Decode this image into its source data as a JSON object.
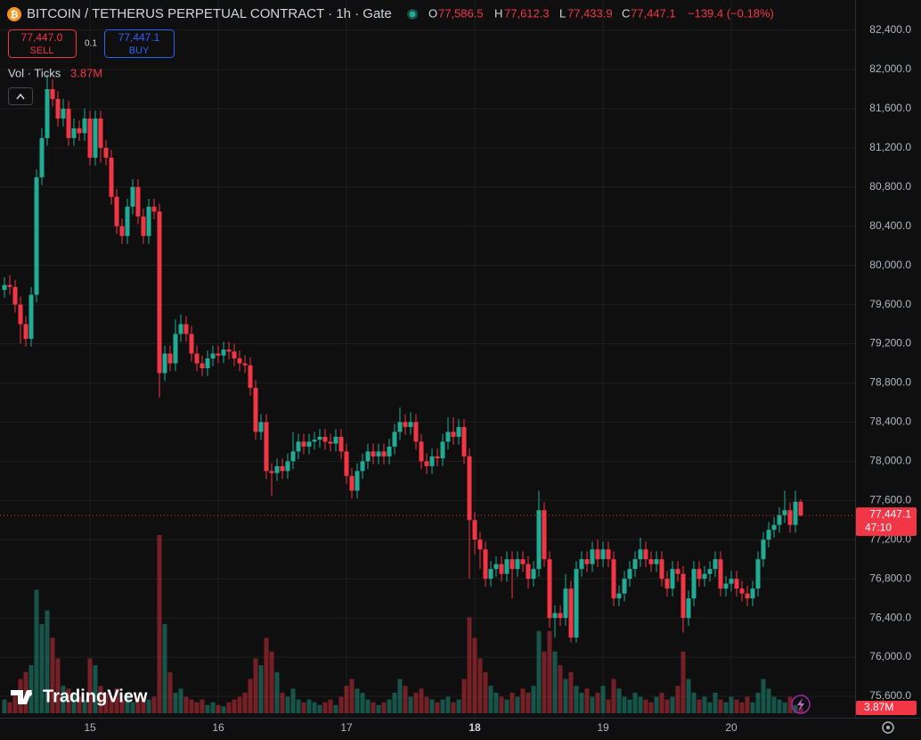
{
  "header": {
    "title": "BITCOIN / TETHERUS PERPETUAL CONTRACT · 1h · Gate",
    "o": "O",
    "h": "H",
    "l": "L",
    "c": "C"
  },
  "trade": {
    "sell_price": "77,447.0",
    "sell": "SELL",
    "size": "0.1",
    "buy_price": "77,447.1",
    "buy": "BUY"
  },
  "logo": "TradingView",
  "chart_data": {
    "type": "candlestick",
    "legend": {
      "open": "77,586.5",
      "high": "77,612.3",
      "low": "77,433.9",
      "close": "77,447.1",
      "change": "−139.4 (−0.18%)"
    },
    "countdown": "47:10",
    "volume_title": "Vol · Ticks",
    "volume_label": "3.87M",
    "up_color": "#22ab94",
    "down_color": "#f23645",
    "grid": true,
    "categories": [
      null,
      null,
      null,
      null,
      null,
      null,
      null,
      null,
      null,
      null,
      null,
      null,
      null,
      null,
      null,
      null,
      "15",
      null,
      null,
      null,
      null,
      null,
      null,
      null,
      null,
      null,
      null,
      null,
      null,
      null,
      null,
      null,
      null,
      null,
      null,
      null,
      null,
      null,
      null,
      null,
      "16",
      null,
      null,
      null,
      null,
      null,
      null,
      null,
      null,
      null,
      null,
      null,
      null,
      null,
      null,
      null,
      null,
      null,
      null,
      null,
      null,
      null,
      null,
      null,
      "17",
      null,
      null,
      null,
      null,
      null,
      null,
      null,
      null,
      null,
      null,
      null,
      null,
      null,
      null,
      null,
      null,
      null,
      null,
      null,
      null,
      null,
      null,
      null,
      "18",
      null,
      null,
      null,
      null,
      null,
      null,
      null,
      null,
      null,
      null,
      null,
      null,
      null,
      null,
      null,
      null,
      null,
      null,
      null,
      null,
      null,
      null,
      null,
      "19",
      null,
      null,
      null,
      null,
      null,
      null,
      null,
      null,
      null,
      null,
      null,
      null,
      null,
      null,
      null,
      null,
      null,
      null,
      null,
      null,
      null,
      null,
      null,
      "20",
      null,
      null,
      null,
      null,
      null,
      null,
      null,
      null,
      null,
      null,
      null,
      null,
      null
    ],
    "open": [
      79750,
      79800,
      79780,
      79600,
      79400,
      79250,
      79700,
      80900,
      81300,
      81800,
      81700,
      81500,
      81600,
      81300,
      81400,
      81350,
      81500,
      81100,
      81500,
      81200,
      81100,
      80700,
      80400,
      80300,
      80600,
      80800,
      80500,
      80300,
      80600,
      80550,
      78900,
      79100,
      79000,
      79300,
      79400,
      79300,
      79100,
      79000,
      78950,
      79050,
      79100,
      79080,
      79140,
      79120,
      79050,
      79000,
      78980,
      78750,
      78300,
      78400,
      77900,
      77880,
      77950,
      77900,
      78000,
      78100,
      78200,
      78150,
      78200,
      78220,
      78250,
      78200,
      78180,
      78250,
      78100,
      77850,
      77700,
      77900,
      78000,
      78100,
      78050,
      78100,
      78050,
      78150,
      78300,
      78400,
      78350,
      78400,
      78200,
      78000,
      77950,
      78050,
      78030,
      78200,
      78300,
      78250,
      78350,
      78050,
      77400,
      77200,
      77100,
      76800,
      76900,
      76950,
      76850,
      77000,
      76900,
      77000,
      76950,
      76800,
      76900,
      77500,
      77000,
      76400,
      76450,
      76400,
      76700,
      76200,
      76900,
      77000,
      76950,
      77100,
      77000,
      77100,
      77000,
      76600,
      76650,
      76800,
      76900,
      77000,
      77100,
      77000,
      76950,
      77000,
      76800,
      76700,
      76900,
      76850,
      76400,
      76600,
      76900,
      76800,
      76850,
      76900,
      77000,
      76700,
      76750,
      76800,
      76700,
      76650,
      76600,
      76700,
      77000,
      77200,
      77300,
      77350,
      77450,
      77500,
      77350,
      77586.5
    ],
    "high": [
      79880,
      79900,
      79850,
      79680,
      79480,
      79780,
      80980,
      81400,
      81950,
      81900,
      81780,
      81700,
      81680,
      81500,
      81480,
      81600,
      81580,
      81580,
      81580,
      81280,
      81180,
      80780,
      80480,
      80680,
      80880,
      80880,
      80580,
      80680,
      80680,
      80630,
      79180,
      79180,
      79450,
      79500,
      79480,
      79380,
      79180,
      79080,
      79130,
      79180,
      79180,
      79220,
      79220,
      79200,
      79130,
      79080,
      79060,
      78830,
      78480,
      78480,
      77980,
      78030,
      78030,
      78080,
      78300,
      78280,
      78280,
      78280,
      78300,
      78330,
      78330,
      78280,
      78330,
      78330,
      78180,
      77930,
      77980,
      78080,
      78180,
      78180,
      78180,
      78180,
      78230,
      78380,
      78550,
      78480,
      78500,
      78480,
      78280,
      78080,
      78130,
      78130,
      78280,
      78450,
      78450,
      78430,
      78430,
      78130,
      77480,
      77280,
      77180,
      76980,
      77030,
      77030,
      77080,
      77080,
      77080,
      77080,
      77030,
      76980,
      77700,
      77580,
      77080,
      76530,
      76530,
      76850,
      76780,
      76980,
      77080,
      77080,
      77180,
      77200,
      77180,
      77180,
      77080,
      76730,
      76880,
      76980,
      77080,
      77220,
      77180,
      77080,
      77080,
      77080,
      76880,
      76980,
      76980,
      76930,
      76680,
      76980,
      76980,
      76930,
      76980,
      77080,
      77080,
      76830,
      76880,
      76880,
      76780,
      76730,
      76780,
      77080,
      77280,
      77380,
      77430,
      77530,
      77700,
      77580,
      77700,
      77612.3
    ],
    "low": [
      79670,
      79700,
      79520,
      79200,
      79170,
      79170,
      79620,
      80820,
      81220,
      81620,
      81420,
      81420,
      81220,
      81220,
      81270,
      81270,
      81020,
      81020,
      81050,
      81020,
      80620,
      80320,
      80220,
      80220,
      80520,
      80420,
      80220,
      80220,
      80470,
      78650,
      78820,
      78920,
      78920,
      79220,
      79220,
      79020,
      78920,
      78870,
      78870,
      78970,
      79000,
      79000,
      79040,
      78970,
      78920,
      78900,
      78670,
      78220,
      78220,
      77820,
      77650,
      77800,
      77820,
      77820,
      77920,
      78020,
      78070,
      78070,
      78120,
      78140,
      78120,
      78100,
      78100,
      78020,
      77770,
      77620,
      77620,
      77820,
      77920,
      77970,
      77970,
      77970,
      77970,
      78070,
      78220,
      78270,
      78270,
      78120,
      77920,
      77870,
      77870,
      77950,
      77950,
      78120,
      78170,
      78170,
      77970,
      76800,
      77050,
      76900,
      76720,
      76720,
      76820,
      76770,
      76770,
      76600,
      76820,
      76870,
      76700,
      76720,
      76820,
      76920,
      76300,
      76200,
      76320,
      76320,
      76150,
      76150,
      76820,
      76870,
      76870,
      76920,
      76920,
      76920,
      76520,
      76520,
      76570,
      76720,
      76820,
      76920,
      76920,
      76870,
      76870,
      76720,
      76620,
      76620,
      76770,
      76250,
      76320,
      76520,
      76720,
      76720,
      76770,
      76820,
      76620,
      76620,
      76670,
      76620,
      76570,
      76520,
      76520,
      76620,
      76920,
      77120,
      77220,
      77270,
      77370,
      77270,
      77270,
      77433.9
    ],
    "close": [
      79800,
      79780,
      79600,
      79400,
      79250,
      79700,
      80900,
      81300,
      81800,
      81700,
      81500,
      81600,
      81300,
      81400,
      81350,
      81500,
      81100,
      81500,
      81200,
      81100,
      80700,
      80400,
      80300,
      80600,
      80800,
      80500,
      80300,
      80600,
      80550,
      78900,
      79100,
      79000,
      79300,
      79400,
      79300,
      79100,
      79000,
      78950,
      79050,
      79100,
      79080,
      79140,
      79120,
      79050,
      79000,
      78980,
      78750,
      78300,
      78400,
      77900,
      77880,
      77950,
      77900,
      78000,
      78100,
      78200,
      78150,
      78200,
      78220,
      78250,
      78200,
      78180,
      78250,
      78100,
      77850,
      77700,
      77900,
      78000,
      78100,
      78050,
      78100,
      78050,
      78150,
      78300,
      78400,
      78350,
      78400,
      78200,
      78000,
      77950,
      78050,
      78030,
      78200,
      78300,
      78250,
      78350,
      78050,
      77400,
      77200,
      77100,
      76800,
      76900,
      76950,
      76850,
      77000,
      76900,
      77000,
      76950,
      76800,
      76900,
      77500,
      77000,
      76400,
      76450,
      76400,
      76700,
      76200,
      76900,
      77000,
      76950,
      77100,
      77000,
      77100,
      77000,
      76600,
      76650,
      76800,
      76900,
      77000,
      77100,
      77000,
      76950,
      77000,
      76800,
      76700,
      76900,
      76850,
      76400,
      76600,
      76900,
      76800,
      76850,
      76900,
      77000,
      76700,
      76750,
      76800,
      76700,
      76650,
      76600,
      76700,
      77000,
      77200,
      77300,
      77350,
      77450,
      77500,
      77350,
      77586.5,
      77447.1
    ],
    "volume": [
      10,
      8,
      15,
      25,
      30,
      35,
      90,
      65,
      75,
      55,
      40,
      20,
      18,
      15,
      12,
      10,
      40,
      35,
      20,
      15,
      12,
      18,
      10,
      15,
      8,
      10,
      12,
      10,
      12,
      130,
      65,
      30,
      15,
      18,
      12,
      10,
      8,
      10,
      6,
      8,
      6,
      5,
      8,
      10,
      12,
      15,
      25,
      40,
      35,
      55,
      45,
      30,
      15,
      12,
      18,
      10,
      8,
      10,
      8,
      6,
      8,
      10,
      6,
      12,
      20,
      25,
      18,
      15,
      10,
      8,
      6,
      8,
      10,
      15,
      25,
      20,
      12,
      15,
      18,
      12,
      10,
      8,
      10,
      12,
      8,
      10,
      25,
      70,
      55,
      40,
      30,
      20,
      15,
      12,
      10,
      15,
      12,
      18,
      15,
      20,
      60,
      45,
      60,
      45,
      35,
      25,
      30,
      20,
      15,
      18,
      12,
      15,
      20,
      10,
      25,
      18,
      12,
      10,
      15,
      12,
      10,
      8,
      12,
      15,
      10,
      12,
      20,
      45,
      25,
      15,
      10,
      12,
      8,
      15,
      10,
      8,
      12,
      10,
      8,
      12,
      8,
      15,
      25,
      18,
      12,
      10,
      8,
      12,
      6,
      3.87
    ],
    "ylim": [
      75336,
      82710
    ],
    "yticks": [
      {
        "value": 82400,
        "label": "82,400.0"
      },
      {
        "value": 82000,
        "label": "82,000.0"
      },
      {
        "value": 81600,
        "label": "81,600.0"
      },
      {
        "value": 81200,
        "label": "81,200.0"
      },
      {
        "value": 80800,
        "label": "80,800.0"
      },
      {
        "value": 80400,
        "label": "80,400.0"
      },
      {
        "value": 80000,
        "label": "80,000.0"
      },
      {
        "value": 79600,
        "label": "79,600.0"
      },
      {
        "value": 79200,
        "label": "79,200.0"
      },
      {
        "value": 78800,
        "label": "78,800.0"
      },
      {
        "value": 78400,
        "label": "78,400.0"
      },
      {
        "value": 78000,
        "label": "78,000.0"
      },
      {
        "value": 77600,
        "label": "77,600.0"
      },
      {
        "value": 77200,
        "label": "77,200.0"
      },
      {
        "value": 76800,
        "label": "76,800.0"
      },
      {
        "value": 76400,
        "label": "76,400.0"
      },
      {
        "value": 76000,
        "label": "76,000.0"
      },
      {
        "value": 75600,
        "label": "75,600.0"
      }
    ]
  }
}
